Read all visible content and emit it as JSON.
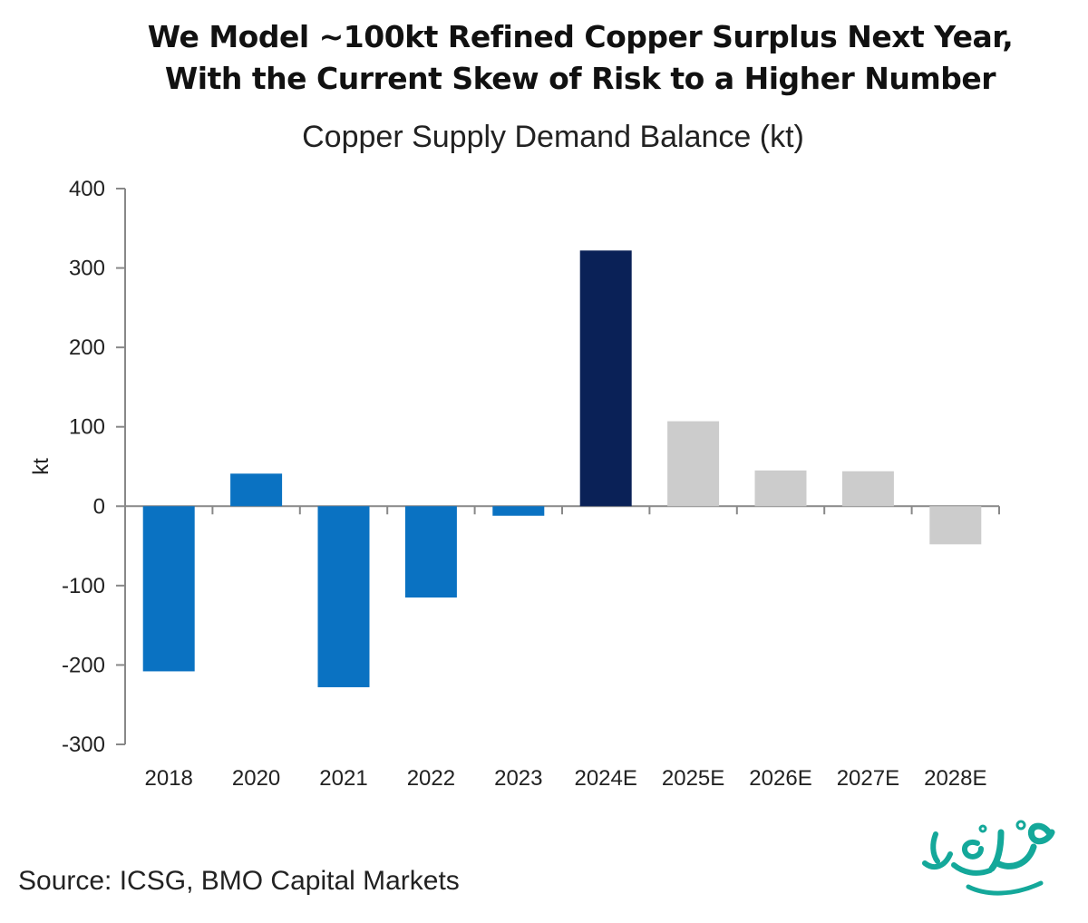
{
  "chart_data": {
    "type": "bar",
    "headline": [
      "We Model ~100kt Refined Copper Surplus Next Year,",
      "With the Current Skew of Risk to a Higher Number"
    ],
    "title": "Copper Supply Demand Balance (kt)",
    "ylabel": "kt",
    "xlabel": "",
    "ylim": [
      -300,
      400
    ],
    "yticks": [
      400,
      300,
      200,
      100,
      0,
      -100,
      -200,
      -300
    ],
    "ytick_labels": [
      "400",
      "300",
      "200",
      "100",
      "0",
      "-100",
      "-200",
      "-300"
    ],
    "categories": [
      "2018",
      "2020",
      "2021",
      "2022",
      "2023",
      "2024E",
      "2025E",
      "2026E",
      "2027E",
      "2028E"
    ],
    "values": [
      -208,
      41,
      -228,
      -115,
      -12,
      322,
      107,
      45,
      44,
      -48
    ],
    "colors": [
      "#0a72c2",
      "#0a72c2",
      "#0a72c2",
      "#0a72c2",
      "#0a72c2",
      "#0a2157",
      "#cccccc",
      "#cccccc",
      "#cccccc",
      "#cccccc"
    ],
    "grid": false,
    "legend": "none"
  },
  "source": "Source: ICSG, BMO Capital Markets",
  "watermark": {
    "text": "صفحه اقتصاد",
    "color": "#14a89a"
  }
}
